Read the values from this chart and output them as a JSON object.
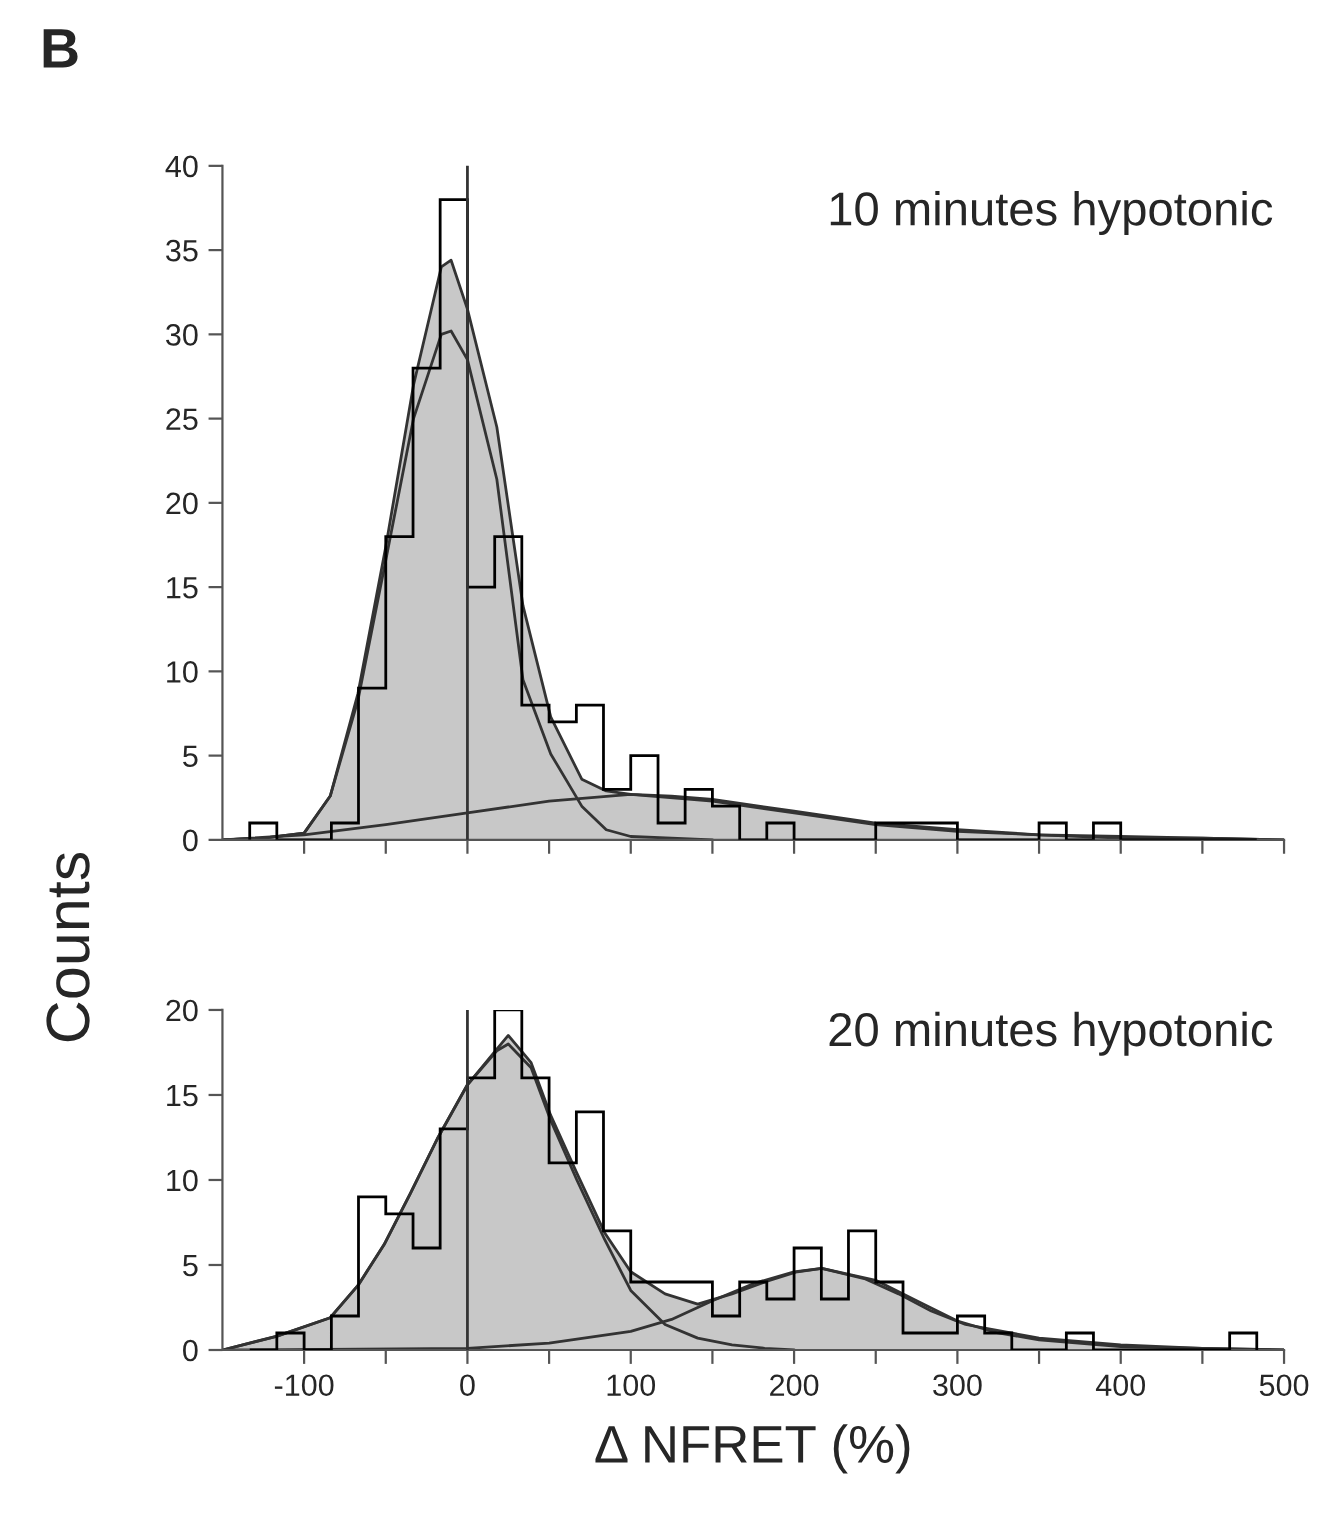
{
  "chart_data": [
    {
      "type": "histogram",
      "title": "10 minutes hypotonic",
      "annotations": [
        "B"
      ],
      "color": "#000000",
      "bins": [
        -133.3,
        -116.7,
        -100,
        -83.3,
        -66.7,
        -50,
        -33.3,
        -16.7,
        0,
        16.7,
        33.3,
        50,
        66.7,
        83.3,
        100,
        116.7,
        133.3,
        150,
        166.7,
        183.3,
        200,
        216.7,
        233.3,
        250,
        266.7,
        283.3,
        300,
        316.7,
        333.3,
        350,
        366.7,
        383.3,
        400,
        416.7,
        433.3,
        450,
        466.7,
        483.3
      ],
      "values": [
        1,
        0,
        0,
        1,
        9,
        18,
        28,
        38,
        15,
        18,
        8,
        7,
        8,
        3,
        5,
        1,
        3,
        2,
        0,
        1,
        0,
        0,
        0,
        1,
        1,
        1,
        0,
        0,
        0,
        1,
        0,
        1,
        0,
        0,
        0,
        0,
        0
      ],
      "series": [
        {
          "type": "area",
          "color": "#c8c8c8",
          "x": [
            -150,
            -125,
            -100,
            -84,
            -67,
            -50,
            -33,
            -16,
            -10,
            0,
            18,
            34,
            51,
            70,
            85,
            100,
            125,
            150,
            200,
            250,
            300,
            350,
            400,
            450,
            500
          ],
          "values": [
            0,
            0.1,
            0.4,
            2.6,
            8.7,
            17.4,
            27,
            34,
            34.4,
            31.5,
            24.5,
            13.9,
            7.3,
            3.6,
            2.9,
            2.7,
            2.6,
            2.4,
            1.7,
            1.0,
            0.6,
            0.3,
            0.2,
            0.1,
            0
          ]
        },
        {
          "type": "line",
          "color": "#333333",
          "x": [
            -150,
            -125,
            -100,
            -84,
            -67,
            -50,
            -33,
            -16,
            -10,
            0,
            18,
            34,
            51,
            70,
            85,
            100,
            125,
            150
          ],
          "values": [
            0,
            0.1,
            0.4,
            2.6,
            8.3,
            16.6,
            25,
            30,
            30.2,
            28.5,
            21.4,
            9.5,
            5.1,
            2,
            0.6,
            0.2,
            0.1,
            0
          ]
        },
        {
          "type": "line",
          "color": "#333333",
          "x": [
            -150,
            -100,
            -50,
            0,
            50,
            100,
            150,
            200,
            250,
            300,
            350,
            400,
            450,
            500
          ],
          "values": [
            0,
            0.3,
            0.9,
            1.6,
            2.3,
            2.7,
            2.3,
            1.6,
            0.9,
            0.5,
            0.3,
            0.1,
            0.1,
            0
          ]
        }
      ],
      "xlim": [
        -150,
        500
      ],
      "ylim": [
        0,
        40
      ],
      "xticks": [
        -100,
        -50,
        0,
        50,
        100,
        150,
        200,
        250,
        300,
        350,
        400,
        450,
        500
      ],
      "yticks": [
        0,
        5,
        10,
        15,
        20,
        25,
        30,
        35,
        40
      ],
      "tick_labels": "y",
      "grid": false,
      "legend": false,
      "ref_lines": [
        {
          "axis": "x",
          "value": 0,
          "color": "#333333"
        }
      ]
    },
    {
      "type": "histogram",
      "title": "20 minutes hypotonic",
      "xlabel": "Δ NFRET (%)",
      "ylabel": "Counts",
      "color": "#000000",
      "bins": [
        -133.3,
        -116.7,
        -100,
        -83.3,
        -66.7,
        -50,
        -33.3,
        -16.7,
        0,
        16.7,
        33.3,
        50,
        66.7,
        83.3,
        100,
        116.7,
        133.3,
        150,
        166.7,
        183.3,
        200,
        216.7,
        233.3,
        250,
        266.7,
        283.3,
        300,
        316.7,
        333.3,
        350,
        366.7,
        383.3,
        400,
        416.7,
        433.3,
        450,
        466.7,
        483.3
      ],
      "values": [
        0,
        1,
        0,
        2,
        9,
        8,
        6,
        13,
        16,
        20,
        16,
        11,
        14,
        7,
        4,
        4,
        4,
        2,
        4,
        3,
        6,
        3,
        7,
        4,
        1,
        1,
        2,
        1,
        0,
        0,
        1,
        0,
        0,
        0,
        0,
        0,
        1
      ],
      "series": [
        {
          "type": "area",
          "color": "#c8c8c8",
          "x": [
            -150,
            -117,
            -84,
            -67,
            -51,
            -35,
            -18,
            0,
            18,
            25,
            39,
            51,
            67,
            84,
            100,
            121,
            141,
            162,
            182,
            202,
            217,
            243,
            264,
            284,
            305,
            350,
            400,
            450,
            500
          ],
          "values": [
            0,
            0.8,
            1.9,
            3.8,
            6.2,
            9.2,
            12.5,
            15.6,
            17.7,
            18.5,
            16.9,
            13.8,
            10.4,
            6.9,
            4.6,
            3.3,
            2.7,
            3.3,
            4,
            4.6,
            4.8,
            4.2,
            3.3,
            2.3,
            1.5,
            0.7,
            0.3,
            0.1,
            0
          ]
        },
        {
          "type": "line",
          "color": "#333333",
          "x": [
            -150,
            -117,
            -84,
            -67,
            -51,
            -35,
            -18,
            0,
            18,
            25,
            39,
            51,
            67,
            84,
            100,
            121,
            141,
            162,
            182,
            200
          ],
          "values": [
            0,
            0.8,
            1.9,
            3.8,
            6.2,
            9.2,
            12.5,
            15.6,
            17.6,
            18,
            16.6,
            13.5,
            10,
            6.5,
            3.5,
            1.5,
            0.7,
            0.3,
            0.1,
            0
          ]
        },
        {
          "type": "line",
          "color": "#333333",
          "x": [
            -150,
            0,
            50,
            100,
            125,
            150,
            175,
            200,
            217,
            250,
            275,
            300,
            325,
            350,
            400,
            450,
            500
          ],
          "values": [
            0,
            0.1,
            0.4,
            1.1,
            1.8,
            2.9,
            3.9,
            4.6,
            4.8,
            4.1,
            2.9,
            1.7,
            1,
            0.6,
            0.2,
            0.1,
            0
          ]
        }
      ],
      "xlim": [
        -150,
        500
      ],
      "ylim": [
        0,
        20
      ],
      "xticks": [
        -100,
        {
          "value": -50,
          "label": null
        },
        0,
        {
          "value": 50,
          "label": null
        },
        100,
        {
          "value": 150,
          "label": null
        },
        200,
        {
          "value": 250,
          "label": null
        },
        300,
        {
          "value": 350,
          "label": null
        },
        400,
        {
          "value": 450,
          "label": null
        },
        500
      ],
      "yticks": [
        0,
        5,
        10,
        15,
        20
      ],
      "grid": false,
      "legend": false,
      "ref_lines": [
        {
          "axis": "x",
          "value": 0,
          "color": "#333333"
        }
      ]
    }
  ]
}
